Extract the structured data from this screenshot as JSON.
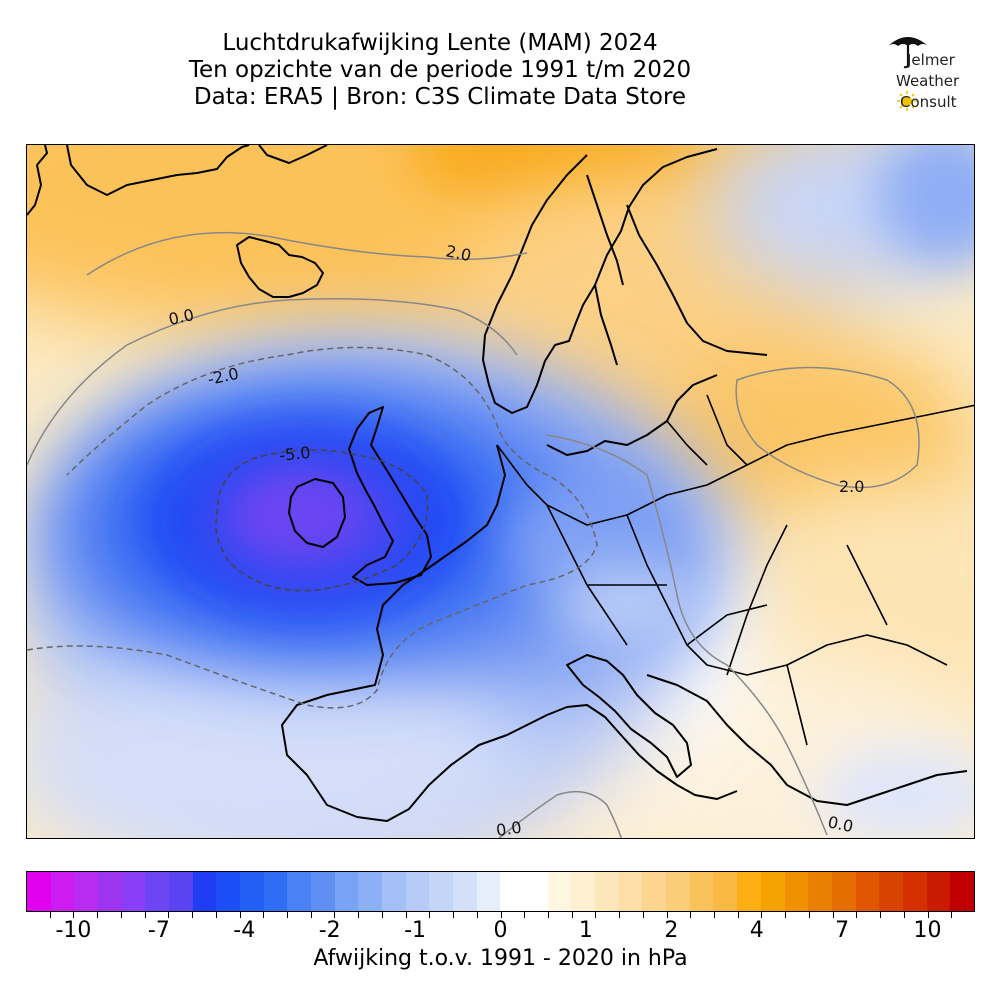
{
  "title": {
    "line1": "Luchtdrukafwijking Lente (MAM) 2024",
    "line2": "Ten opzichte van de periode 1991 t/m 2020",
    "line3": "Data: ERA5 | Bron: C3S Climate Data Store"
  },
  "logo": {
    "line1": "Jelmer",
    "line2": "Weather",
    "line3": "Consult",
    "icon": "umbrella-sun-icon"
  },
  "map": {
    "contour_labels": [
      "2.0",
      "0.0",
      "-2.0",
      "-5.0",
      "2.0",
      "0.0",
      "0.0"
    ]
  },
  "colorbar": {
    "tick_labels": [
      "-10",
      "-7",
      "-4",
      "-2",
      "-1",
      "0",
      "1",
      "2",
      "4",
      "7",
      "10"
    ],
    "caption": "Afwijking t.o.v. 1991 - 2020 in hPa",
    "colors": [
      "#e200f0",
      "#cc1cf2",
      "#b72cf0",
      "#9d34f0",
      "#8a3ef5",
      "#6d45f5",
      "#5a44f2",
      "#1f3df5",
      "#1c4ef5",
      "#245ff5",
      "#2f6ef4",
      "#4a82f4",
      "#5f8ff3",
      "#7ba3f5",
      "#8cb0f5",
      "#a4c0f6",
      "#b6ccf7",
      "#c5d5f8",
      "#d4e0f9",
      "#e7eefb",
      "#ffffff",
      "#ffffff",
      "#fff6e2",
      "#fdefd0",
      "#fce7bd",
      "#fcdea6",
      "#fcd690",
      "#fccd78",
      "#fbc25c",
      "#fbb842",
      "#fcae14",
      "#f4a300",
      "#ef9000",
      "#e97e00",
      "#e66d00",
      "#df5500",
      "#d84300",
      "#d43000",
      "#ca1b00",
      "#c00000"
    ]
  }
}
